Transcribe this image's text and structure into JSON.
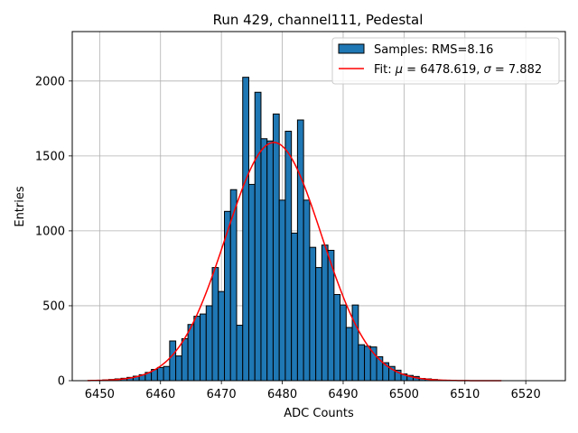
{
  "chart_data": {
    "type": "bar",
    "title": "Run 429, channel111, Pedestal",
    "xlabel": "ADC Counts",
    "ylabel": "Entries",
    "xlim": [
      6445.5,
      6526.5
    ],
    "ylim": [
      0,
      2330
    ],
    "xticks": [
      6450,
      6460,
      6470,
      6480,
      6490,
      6500,
      6510,
      6520
    ],
    "yticks": [
      0,
      500,
      1000,
      1500,
      2000
    ],
    "grid": true,
    "legend_position": "top-right",
    "colors": {
      "bars": "#1f77b4",
      "bar_edge": "#000000",
      "fit": "#ff0000",
      "grid": "#b0b0b0"
    },
    "histogram": {
      "name": "Samples: RMS=8.16",
      "bin_width": 1,
      "bin_centers": [
        6450,
        6451,
        6452,
        6453,
        6454,
        6455,
        6456,
        6457,
        6458,
        6459,
        6460,
        6461,
        6462,
        6463,
        6464,
        6465,
        6466,
        6467,
        6468,
        6469,
        6470,
        6471,
        6472,
        6473,
        6474,
        6475,
        6476,
        6477,
        6478,
        6479,
        6480,
        6481,
        6482,
        6483,
        6484,
        6485,
        6486,
        6487,
        6488,
        6489,
        6490,
        6491,
        6492,
        6493,
        6494,
        6495,
        6496,
        6497,
        6498,
        6499,
        6500,
        6501,
        6502,
        6503,
        6504,
        6505
      ],
      "values": [
        3,
        5,
        8,
        12,
        16,
        22,
        30,
        40,
        55,
        75,
        88,
        95,
        265,
        165,
        280,
        375,
        430,
        445,
        500,
        755,
        595,
        1130,
        1275,
        370,
        2025,
        1310,
        1925,
        1615,
        1600,
        1780,
        1205,
        1665,
        985,
        1740,
        1205,
        890,
        755,
        905,
        870,
        575,
        505,
        355,
        505,
        240,
        230,
        225,
        160,
        120,
        95,
        70,
        45,
        35,
        28,
        15,
        12,
        8
      ]
    },
    "fit": {
      "name": "Fit: μ = 6478.619, σ = 7.882",
      "label_parts": [
        "Fit: ",
        "μ",
        " = 6478.619, ",
        "σ",
        " = 7.882"
      ],
      "mu": 6478.619,
      "sigma": 7.882,
      "amplitude": 1590,
      "x_range": [
        6448,
        6516
      ]
    }
  }
}
